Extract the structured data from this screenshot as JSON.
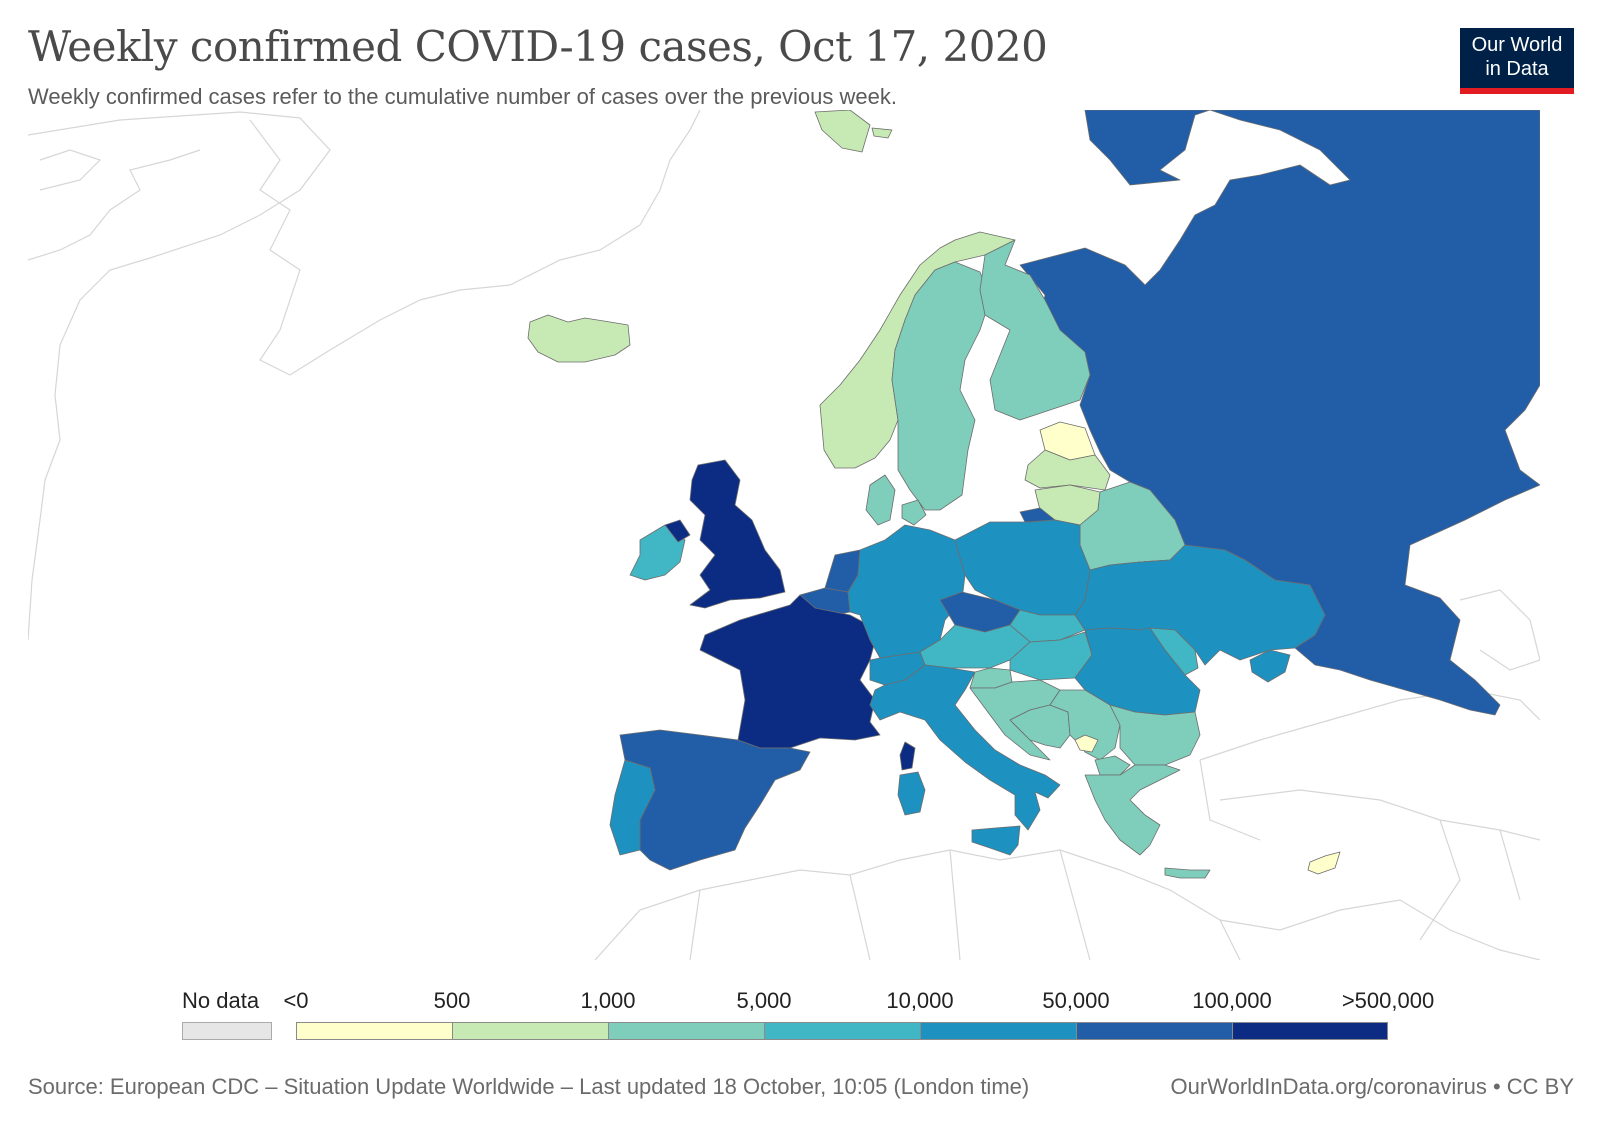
{
  "header": {
    "title": "Weekly confirmed COVID-19 cases, Oct 17, 2020",
    "subtitle": "Weekly confirmed cases refer to the cumulative number of cases over the previous week."
  },
  "logo": {
    "line1": "Our World",
    "line2": "in Data"
  },
  "legend": {
    "no_data_label": "No data",
    "no_data_color": "#e6e6e6",
    "ticks": [
      "<0",
      "500",
      "1,000",
      "5,000",
      "10,000",
      "50,000",
      "100,000",
      ">500,000"
    ],
    "bins": [
      {
        "color": "#ffffcc"
      },
      {
        "color": "#c7e9b4"
      },
      {
        "color": "#7fcdbb"
      },
      {
        "color": "#41b6c4"
      },
      {
        "color": "#1d91c0"
      },
      {
        "color": "#225ea8"
      },
      {
        "color": "#0c2c84"
      }
    ]
  },
  "footer": {
    "source": "Source: European CDC – Situation Update Worldwide – Last updated 18 October, 10:05 (London time)",
    "credit": "OurWorldInData.org/coronavirus • CC BY"
  },
  "map_data": {
    "type": "choropleth",
    "region": "Europe",
    "countries": [
      {
        "name": "Russia",
        "bin": 5
      },
      {
        "name": "United Kingdom",
        "bin": 6
      },
      {
        "name": "France",
        "bin": 6
      },
      {
        "name": "Spain",
        "bin": 5
      },
      {
        "name": "Portugal",
        "bin": 4
      },
      {
        "name": "Ireland",
        "bin": 3
      },
      {
        "name": "Northern Ireland",
        "bin": 6
      },
      {
        "name": "Netherlands",
        "bin": 5
      },
      {
        "name": "Belgium",
        "bin": 5
      },
      {
        "name": "Germany",
        "bin": 4
      },
      {
        "name": "Switzerland",
        "bin": 4
      },
      {
        "name": "Italy",
        "bin": 4
      },
      {
        "name": "Corsica",
        "bin": 6
      },
      {
        "name": "Sardinia",
        "bin": 4
      },
      {
        "name": "Sicily",
        "bin": 4
      },
      {
        "name": "Czechia",
        "bin": 5
      },
      {
        "name": "Poland",
        "bin": 4
      },
      {
        "name": "Ukraine",
        "bin": 4
      },
      {
        "name": "Romania",
        "bin": 4
      },
      {
        "name": "Moldova",
        "bin": 3
      },
      {
        "name": "Crimea",
        "bin": 4
      },
      {
        "name": "Austria",
        "bin": 3
      },
      {
        "name": "Slovakia",
        "bin": 3
      },
      {
        "name": "Hungary",
        "bin": 3
      },
      {
        "name": "Slovenia",
        "bin": 2
      },
      {
        "name": "Croatia",
        "bin": 2
      },
      {
        "name": "Bosnia",
        "bin": 2
      },
      {
        "name": "Serbia",
        "bin": 2
      },
      {
        "name": "Montenegro",
        "bin": 0
      },
      {
        "name": "Bulgaria",
        "bin": 2
      },
      {
        "name": "Greece",
        "bin": 2
      },
      {
        "name": "Crete",
        "bin": 2
      },
      {
        "name": "North Macedonia",
        "bin": 2
      },
      {
        "name": "Belarus",
        "bin": 2
      },
      {
        "name": "Lithuania",
        "bin": 1
      },
      {
        "name": "Latvia",
        "bin": 1
      },
      {
        "name": "Estonia",
        "bin": 0
      },
      {
        "name": "Kaliningrad",
        "bin": 5
      },
      {
        "name": "Denmark",
        "bin": 2
      },
      {
        "name": "Zealand",
        "bin": 2
      },
      {
        "name": "Sweden",
        "bin": 2
      },
      {
        "name": "Finland",
        "bin": 2
      },
      {
        "name": "Norway",
        "bin": 1
      },
      {
        "name": "Iceland",
        "bin": 1
      },
      {
        "name": "Svalbard",
        "bin": 1
      },
      {
        "name": "Cyprus",
        "bin": 0
      }
    ]
  }
}
